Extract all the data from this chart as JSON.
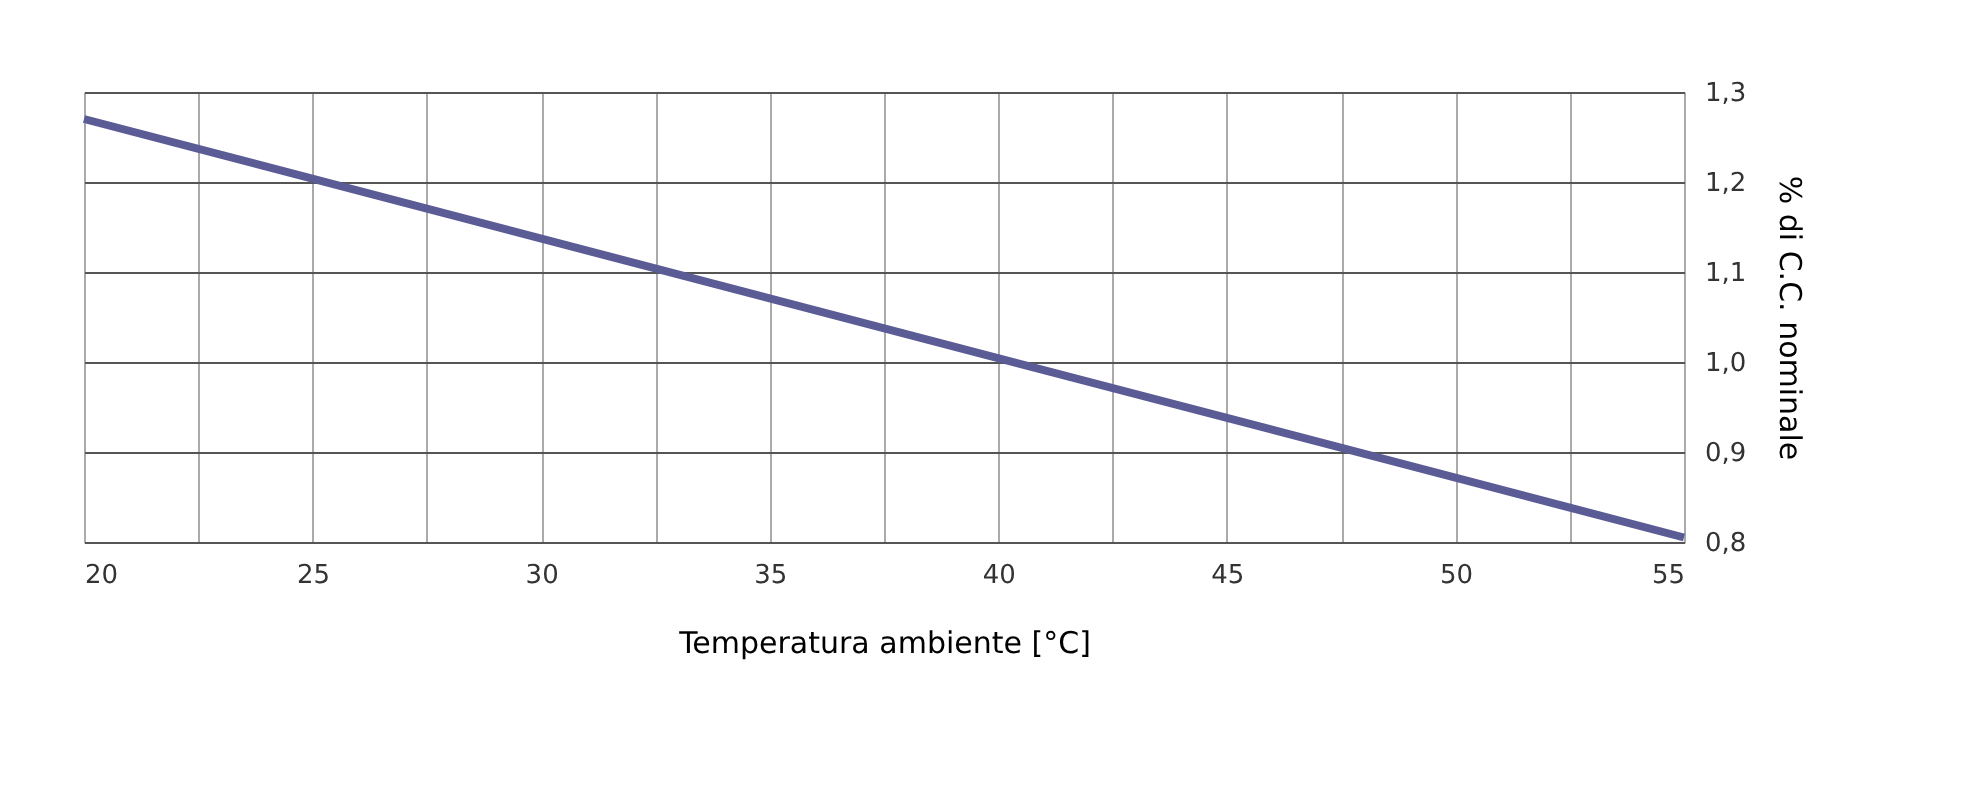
{
  "chart_data": {
    "type": "line",
    "xlabel": "Temperatura ambiente [°C]",
    "ylabel": "% di C.C. nominale",
    "x": [
      20,
      55
    ],
    "series": [
      {
        "color": "#5b5b95",
        "values": [
          1.27,
          0.805
        ]
      }
    ],
    "xlim": [
      20,
      55
    ],
    "xticks": [
      20,
      {
        "value": 22.5,
        "label": null
      },
      25,
      {
        "value": 27.5,
        "label": null
      },
      30,
      {
        "value": 32.5,
        "label": null
      },
      35,
      {
        "value": 37.5,
        "label": null
      },
      40,
      {
        "value": 42.5,
        "label": null
      },
      45,
      {
        "value": 47.5,
        "label": null
      },
      50,
      {
        "value": 52.5,
        "label": null
      },
      55
    ],
    "ylim": [
      0.8,
      1.3
    ],
    "yticks": [
      {
        "value": 0.8,
        "label": "0,8"
      },
      {
        "value": 0.9,
        "label": "0,9"
      },
      {
        "value": 1.0,
        "label": "1,0"
      },
      {
        "value": 1.1,
        "label": "1,1"
      },
      {
        "value": 1.2,
        "label": "1,2"
      },
      {
        "value": 1.3,
        "label": "1,3"
      }
    ],
    "grid": true,
    "legend": false,
    "marker": "none",
    "line_style": "solid"
  }
}
